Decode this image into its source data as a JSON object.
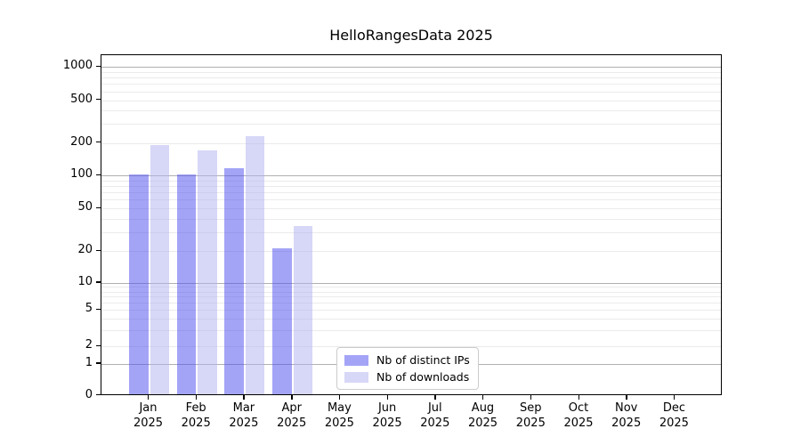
{
  "chart_data": {
    "type": "bar",
    "title": "HelloRangesData 2025",
    "categories": [
      "Jan",
      "Feb",
      "Mar",
      "Apr",
      "May",
      "Jun",
      "Jul",
      "Aug",
      "Sep",
      "Oct",
      "Nov",
      "Dec"
    ],
    "x_year": "2025",
    "series": [
      {
        "name": "Nb of distinct IPs",
        "color": "rgba(80,80,240,0.52)",
        "values": [
          103,
          103,
          118,
          21,
          null,
          null,
          null,
          null,
          null,
          null,
          null,
          null
        ]
      },
      {
        "name": "Nb of downloads",
        "color": "rgba(175,175,240,0.5)",
        "values": [
          190,
          172,
          232,
          34,
          null,
          null,
          null,
          null,
          null,
          null,
          null,
          null
        ]
      }
    ],
    "xlabel": "",
    "ylabel": "",
    "yscale": "symlog",
    "y_ticks": [
      0,
      1,
      2,
      5,
      10,
      20,
      50,
      100,
      200,
      500,
      1000
    ],
    "y_major_gridlines": [
      1,
      10,
      100,
      1000
    ],
    "y_minor_gridlines": [
      2,
      3,
      4,
      5,
      6,
      7,
      8,
      9,
      20,
      30,
      40,
      50,
      60,
      70,
      80,
      90,
      200,
      300,
      400,
      500,
      600,
      700,
      800,
      900
    ],
    "ylim": [
      0,
      1400
    ],
    "grid": true,
    "legend_position": "lower center"
  },
  "colors": {
    "background": "#ffffff",
    "axis": "#000000",
    "major_grid": "#b0b0b0",
    "minor_grid": "#ebebeb",
    "legend_border": "#cccccc"
  }
}
